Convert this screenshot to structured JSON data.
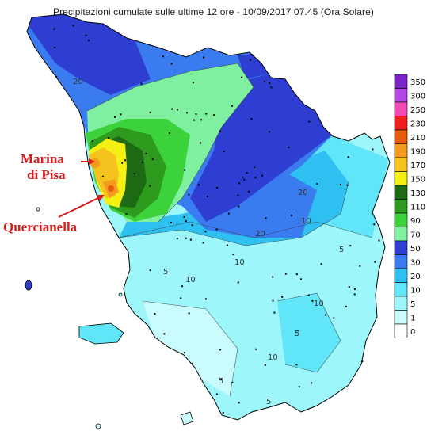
{
  "title": "Precipitazioni cumulate sulle ultime 12 ore - 10/09/2017 07.45 (Ora Solare)",
  "annotations": {
    "marina": [
      "Marina",
      "di Pisa"
    ],
    "quercianella": "Quercianella"
  },
  "legend": {
    "levels": [
      {
        "label": "350",
        "color": "#7b22c8"
      },
      {
        "label": "300",
        "color": "#b348e6"
      },
      {
        "label": "250",
        "color": "#f24ab7"
      },
      {
        "label": "230",
        "color": "#f01e1e"
      },
      {
        "label": "210",
        "color": "#e65a0a"
      },
      {
        "label": "190",
        "color": "#f59a1e"
      },
      {
        "label": "170",
        "color": "#f5c21e"
      },
      {
        "label": "150",
        "color": "#f5f014"
      },
      {
        "label": "130",
        "color": "#1e6a14"
      },
      {
        "label": "110",
        "color": "#2e9a1e"
      },
      {
        "label": "90",
        "color": "#3cd23c"
      },
      {
        "label": "70",
        "color": "#7ef0a0"
      },
      {
        "label": "50",
        "color": "#2e3ed2"
      },
      {
        "label": "30",
        "color": "#3a7cf0"
      },
      {
        "label": "20",
        "color": "#2ec0f0"
      },
      {
        "label": "10",
        "color": "#60e6f8"
      },
      {
        "label": "5",
        "color": "#9cf6fa"
      },
      {
        "label": "1",
        "color": "#cafcfd"
      },
      {
        "label": "0",
        "color": "#ffffff"
      }
    ]
  },
  "contour_labels": [
    "20",
    "20",
    "20",
    "10",
    "10",
    "5",
    "10",
    "5",
    "5",
    "5",
    "10",
    "10",
    "5"
  ]
}
